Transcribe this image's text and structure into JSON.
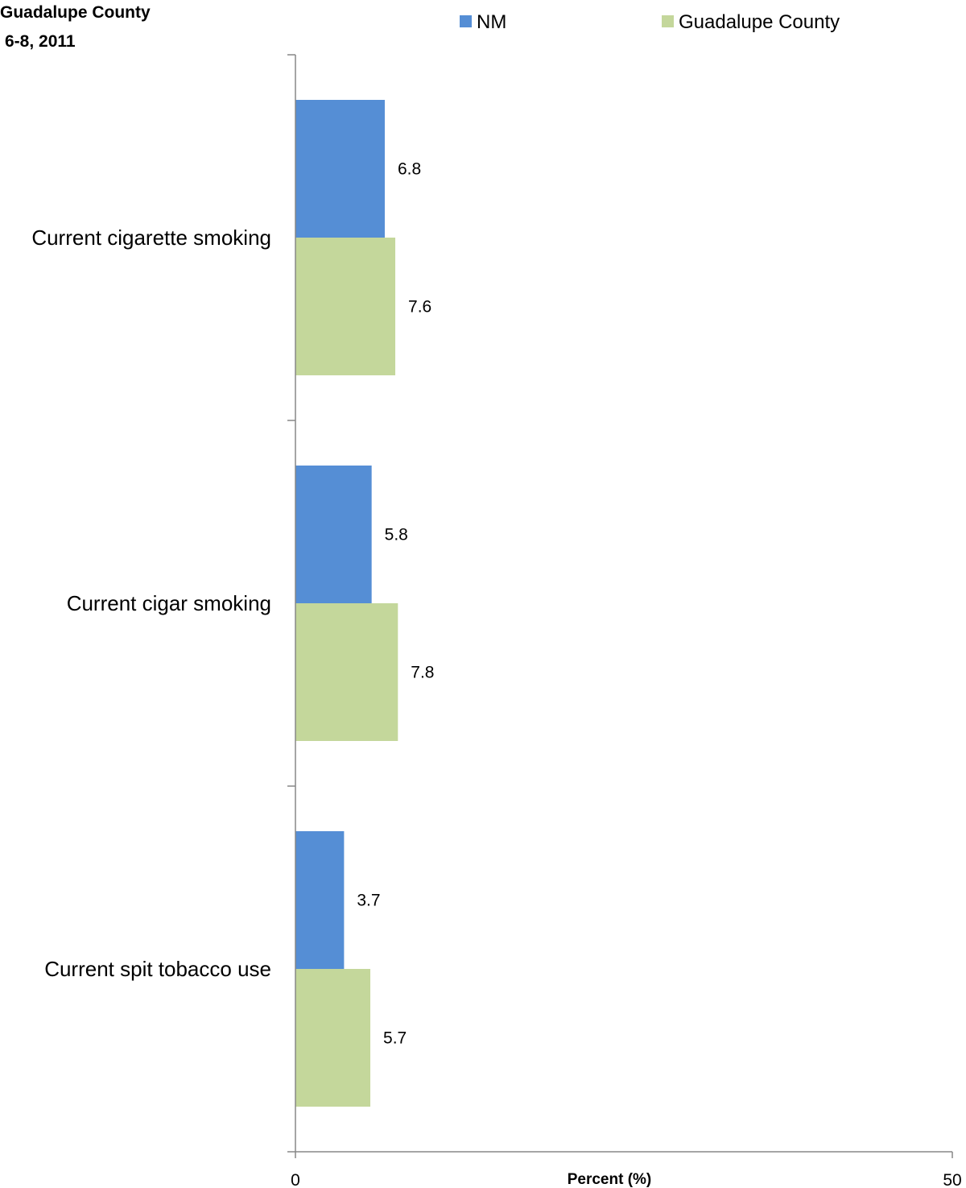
{
  "chart_data": {
    "type": "bar",
    "orientation": "horizontal",
    "title_lines": [
      "Guadalupe County",
      "6-8, 2011"
    ],
    "categories": [
      "Current cigarette smoking",
      "Current cigar smoking",
      "Current spit tobacco use"
    ],
    "series": [
      {
        "name": "NM",
        "color": "#558ed5",
        "values": [
          6.8,
          5.8,
          3.7
        ]
      },
      {
        "name": "Guadalupe County",
        "color": "#c4d79b",
        "values": [
          7.6,
          7.8,
          5.7
        ]
      }
    ],
    "xlabel": "Percent (%)",
    "xlim": [
      0,
      50
    ],
    "tick_labels": [
      "0",
      "50"
    ],
    "legend_position": "top",
    "grid": false
  }
}
